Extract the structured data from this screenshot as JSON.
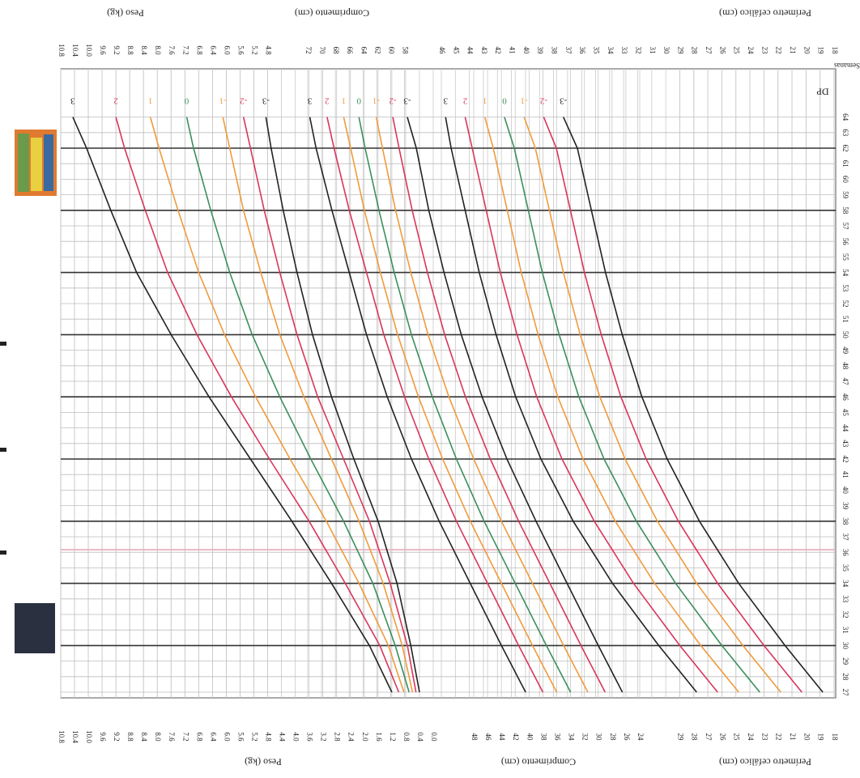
{
  "chart_data": [
    {
      "type": "line",
      "ylabel": "Peso (kg)",
      "y2label": "Peso (kg)",
      "x": [
        27,
        30,
        34,
        38,
        42,
        46,
        50,
        54,
        58,
        62,
        64
      ],
      "xlim": [
        27,
        64
      ],
      "ylim": [
        0,
        10.8
      ],
      "yticks": [
        {
          "value": 0,
          "label": "0.0"
        },
        0.4,
        0.8,
        1.2,
        1.6,
        {
          "value": 2,
          "label": "2.0"
        },
        2.4,
        2.8,
        3.2,
        3.6,
        {
          "value": 4,
          "label": "4.0"
        },
        4.4,
        4.8,
        5.2,
        5.6,
        {
          "value": 6,
          "label": "6.0"
        },
        6.4,
        6.8,
        7.2,
        7.6,
        {
          "value": 8,
          "label": "8.0"
        },
        8.4,
        8.8,
        9.2,
        9.6,
        {
          "value": 10,
          "label": "10.0"
        },
        10.4,
        10.8
      ],
      "y2ticks": [
        4.8,
        5.2,
        5.6,
        {
          "value": 6,
          "label": "6.0"
        },
        6.4,
        6.8,
        7.2,
        7.6,
        {
          "value": 8,
          "label": "8.0"
        },
        8.4,
        8.8,
        9.2,
        9.6,
        {
          "value": 10,
          "label": "10.0"
        },
        10.4,
        10.8
      ],
      "series": [
        {
          "name": "3",
          "color": "#222222",
          "values": [
            1.2,
            1.85,
            2.95,
            4.1,
            5.3,
            6.5,
            7.6,
            8.6,
            9.35,
            10.05,
            10.45
          ]
        },
        {
          "name": "2",
          "color": "#d8365a",
          "values": [
            1.0,
            1.55,
            2.55,
            3.6,
            4.75,
            5.85,
            6.85,
            7.7,
            8.35,
            8.95,
            9.2
          ]
        },
        {
          "name": "1",
          "color": "#f09a3c",
          "values": [
            0.85,
            1.3,
            2.15,
            3.1,
            4.15,
            5.15,
            6.05,
            6.8,
            7.4,
            7.95,
            8.2
          ]
        },
        {
          "name": "0",
          "color": "#3b8f5a",
          "values": [
            0.7,
            1.1,
            1.75,
            2.6,
            3.55,
            4.45,
            5.25,
            5.9,
            6.45,
            6.95,
            7.15
          ]
        },
        {
          "name": "-1",
          "color": "#f09a3c",
          "values": [
            0.6,
            0.9,
            1.45,
            2.15,
            2.95,
            3.75,
            4.45,
            5.0,
            5.5,
            5.9,
            6.1
          ]
        },
        {
          "name": "-2",
          "color": "#d8365a",
          "values": [
            0.5,
            0.75,
            1.25,
            1.85,
            2.6,
            3.35,
            3.95,
            4.45,
            4.9,
            5.3,
            5.5
          ]
        },
        {
          "name": "-3",
          "color": "#222222",
          "values": [
            0.4,
            0.65,
            1.05,
            1.6,
            2.3,
            2.95,
            3.5,
            3.95,
            4.35,
            4.7,
            4.85
          ]
        }
      ]
    },
    {
      "type": "line",
      "ylabel": "Comprimento (cm)",
      "y2label": "Comprimento (cm)",
      "x": [
        27,
        30,
        34,
        38,
        42,
        46,
        50,
        54,
        58,
        62,
        64
      ],
      "xlim": [
        27,
        64
      ],
      "ylim": [
        24,
        72
      ],
      "yticks": [
        24,
        26,
        28,
        30,
        32,
        34,
        36,
        38,
        40,
        42,
        44,
        46,
        48
      ],
      "y2ticks": [
        58,
        60,
        62,
        64,
        66,
        68,
        70,
        72
      ],
      "series": [
        {
          "name": "3",
          "color": "#222222",
          "values": [
            40.5,
            44,
            48.5,
            53,
            57,
            60.5,
            63.5,
            66,
            68.5,
            70.8,
            71.7
          ]
        },
        {
          "name": "2",
          "color": "#d8365a",
          "values": [
            38,
            41.5,
            46,
            50.5,
            54.5,
            58,
            61,
            63.5,
            66,
            68.2,
            69.2
          ]
        },
        {
          "name": "1",
          "color": "#f09a3c",
          "values": [
            36,
            39.5,
            44,
            48.5,
            52.5,
            56,
            59,
            61.5,
            63.8,
            65.8,
            66.8
          ]
        },
        {
          "name": "0",
          "color": "#3b8f5a",
          "values": [
            34,
            37.5,
            42,
            46.5,
            50.5,
            54,
            57,
            59.5,
            61.7,
            63.7,
            64.6
          ]
        },
        {
          "name": "-1",
          "color": "#f09a3c",
          "values": [
            31.5,
            35,
            39.5,
            44,
            48,
            51.6,
            54.6,
            57.1,
            59.3,
            61.2,
            62.1
          ]
        },
        {
          "name": "-2",
          "color": "#d8365a",
          "values": [
            29,
            32.5,
            37,
            41.5,
            45.6,
            49.2,
            52.2,
            54.7,
            56.9,
            58.8,
            59.7
          ]
        },
        {
          "name": "-3",
          "color": "#222222",
          "values": [
            26.5,
            30,
            34.5,
            39,
            43.2,
            46.8,
            49.8,
            52.3,
            54.5,
            56.3,
            57.6
          ]
        }
      ]
    },
    {
      "type": "line",
      "ylabel": "Perímetro cefálico (cm)",
      "y2label": "Perímetro cefálico (cm)",
      "xlabel": "Semanas",
      "legend_title": "DP",
      "x": [
        27,
        30,
        34,
        38,
        42,
        46,
        50,
        54,
        58,
        62,
        64
      ],
      "xlim": [
        27,
        64
      ],
      "xticks": [
        27,
        28,
        29,
        30,
        31,
        32,
        33,
        34,
        35,
        36,
        37,
        38,
        39,
        40,
        41,
        42,
        43,
        44,
        45,
        46,
        47,
        48,
        49,
        50,
        51,
        52,
        53,
        54,
        55,
        56,
        57,
        58,
        59,
        60,
        61,
        62,
        63,
        64
      ],
      "major_grid": [
        30,
        34,
        38,
        42,
        46,
        50,
        54,
        58,
        62
      ],
      "ylim": [
        18,
        46
      ],
      "yticks": [
        18,
        19,
        20,
        21,
        22,
        23,
        24,
        25,
        26,
        27,
        28,
        29
      ],
      "y2ticks": [
        18,
        19,
        20,
        21,
        22,
        23,
        24,
        25,
        26,
        27,
        28,
        29,
        30,
        31,
        32,
        33,
        34,
        35,
        36,
        37,
        38,
        39,
        40,
        41,
        42,
        43,
        44,
        45,
        46
      ],
      "series": [
        {
          "name": "3",
          "color": "#222222",
          "values": [
            27.8,
            30.5,
            33.8,
            36.6,
            38.9,
            40.7,
            42.1,
            43.3,
            44.3,
            45.3,
            45.7
          ]
        },
        {
          "name": "2",
          "color": "#d8365a",
          "values": [
            26.3,
            29,
            32.3,
            35.1,
            37.4,
            39.2,
            40.6,
            41.8,
            42.8,
            43.8,
            44.3
          ]
        },
        {
          "name": "1",
          "color": "#f09a3c",
          "values": [
            24.8,
            27.5,
            30.8,
            33.6,
            35.9,
            37.7,
            39.1,
            40.3,
            41.3,
            42.3,
            42.9
          ]
        },
        {
          "name": "0",
          "color": "#3b8f5a",
          "values": [
            23.3,
            26,
            29.3,
            32.1,
            34.4,
            36.2,
            37.6,
            38.8,
            39.8,
            40.8,
            41.5
          ]
        },
        {
          "name": "-1",
          "color": "#f09a3c",
          "values": [
            21.8,
            24.5,
            27.8,
            30.6,
            32.9,
            34.7,
            36.1,
            37.3,
            38.3,
            39.3,
            40.1
          ]
        },
        {
          "name": "-2",
          "color": "#d8365a",
          "values": [
            20.3,
            23,
            26.3,
            29.1,
            31.4,
            33.2,
            34.6,
            35.8,
            36.8,
            37.8,
            38.7
          ]
        },
        {
          "name": "-3",
          "color": "#222222",
          "values": [
            18.8,
            21.5,
            24.8,
            27.6,
            29.9,
            31.7,
            33.1,
            34.3,
            35.3,
            36.3,
            37.3
          ]
        }
      ]
    }
  ]
}
